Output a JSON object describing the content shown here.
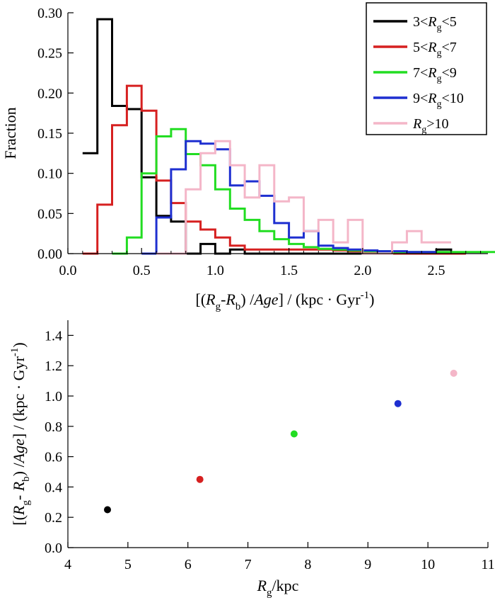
{
  "chart_data": [
    {
      "type": "histogram",
      "ylabel": "Fraction",
      "xlabel": {
        "parts": [
          {
            "t": "[(",
            "style": "normal"
          },
          {
            "t": "R",
            "style": "italic"
          },
          {
            "t": "g",
            "style": "sub"
          },
          {
            "t": "-",
            "style": "normal"
          },
          {
            "t": "R",
            "style": "italic"
          },
          {
            "t": "b",
            "style": "sub"
          },
          {
            "t": ") /",
            "style": "normal"
          },
          {
            "t": "Age",
            "style": "italic"
          },
          {
            "t": "] / (kpc · Gyr",
            "style": "normal"
          },
          {
            "t": "-1",
            "style": "sup"
          },
          {
            "t": ")",
            "style": "normal"
          }
        ]
      },
      "xlim": [
        0,
        2.85
      ],
      "ylim": [
        0,
        0.3
      ],
      "xticks": [
        {
          "v": 0.0,
          "label": "0.0"
        },
        {
          "v": 0.5,
          "label": "0.5"
        },
        {
          "v": 1.0,
          "label": "1.0"
        },
        {
          "v": 1.5,
          "label": "1.5"
        },
        {
          "v": 2.0,
          "label": "2.0"
        },
        {
          "v": 2.5,
          "label": "2.5"
        }
      ],
      "yticks": [
        {
          "v": 0.0,
          "label": "0.00"
        },
        {
          "v": 0.05,
          "label": "0.05"
        },
        {
          "v": 0.1,
          "label": "0.10"
        },
        {
          "v": 0.15,
          "label": "0.15"
        },
        {
          "v": 0.2,
          "label": "0.20"
        },
        {
          "v": 0.25,
          "label": "0.25"
        },
        {
          "v": 0.3,
          "label": "0.30"
        }
      ],
      "bin_width": 0.1,
      "legend_position": "top-right",
      "series": [
        {
          "label": [
            {
              "t": "3<",
              "style": "normal"
            },
            {
              "t": "R",
              "style": "italic"
            },
            {
              "t": "g",
              "style": "sub"
            },
            {
              "t": "<5",
              "style": "normal"
            }
          ],
          "color": "#000000",
          "bin_start": 0.1,
          "values": [
            0.125,
            0.292,
            0.184,
            0.18,
            0.095,
            0.047,
            0.04,
            0.0,
            0.012,
            0.0,
            0.005,
            0.0,
            0.0,
            0.0,
            0.0,
            0.0,
            0.0,
            0.0,
            0.0,
            0.0,
            0.0,
            0.0,
            0.0,
            0.0,
            0.005,
            0.0
          ]
        },
        {
          "label": [
            {
              "t": "5<",
              "style": "normal"
            },
            {
              "t": "R",
              "style": "italic"
            },
            {
              "t": "g",
              "style": "sub"
            },
            {
              "t": "<7",
              "style": "normal"
            }
          ],
          "color": "#d62020",
          "bin_start": 0.1,
          "values": [
            0.0,
            0.061,
            0.16,
            0.209,
            0.178,
            0.091,
            0.063,
            0.04,
            0.03,
            0.02,
            0.01,
            0.005,
            0.005,
            0.005,
            0.005,
            0.005,
            0.005,
            0.004,
            0.003,
            0.002,
            0.0,
            0.0,
            0.0,
            0.0,
            0.0,
            0.0
          ]
        },
        {
          "label": [
            {
              "t": "7<",
              "style": "normal"
            },
            {
              "t": "R",
              "style": "italic"
            },
            {
              "t": "g",
              "style": "sub"
            },
            {
              "t": "<9",
              "style": "normal"
            }
          ],
          "color": "#22dd22",
          "bin_start": 0.3,
          "values": [
            0.0,
            0.02,
            0.1,
            0.146,
            0.155,
            0.124,
            0.11,
            0.08,
            0.056,
            0.042,
            0.028,
            0.018,
            0.012,
            0.008,
            0.006,
            0.005,
            0.004,
            0.003,
            0.003,
            0.002,
            0.002,
            0.002,
            0.002,
            0.002,
            0.002,
            0.002
          ]
        },
        {
          "label": [
            {
              "t": "9<",
              "style": "normal"
            },
            {
              "t": "R",
              "style": "italic"
            },
            {
              "t": "g",
              "style": "sub"
            },
            {
              "t": "<10",
              "style": "normal"
            }
          ],
          "color": "#1e2fd0",
          "bin_start": 0.5,
          "values": [
            0.0,
            0.045,
            0.105,
            0.14,
            0.137,
            0.13,
            0.085,
            0.09,
            0.072,
            0.038,
            0.02,
            0.028,
            0.01,
            0.007,
            0.005,
            0.004,
            0.003,
            0.003,
            0.002,
            0.002
          ]
        },
        {
          "label": [
            {
              "t": "R",
              "style": "italic"
            },
            {
              "t": "g",
              "style": "sub"
            },
            {
              "t": ">10",
              "style": "normal"
            }
          ],
          "color": "#f4b6c8",
          "bin_start": 0.6,
          "values": [
            0.0,
            0.0,
            0.08,
            0.125,
            0.14,
            0.11,
            0.07,
            0.11,
            0.065,
            0.07,
            0.028,
            0.042,
            0.014,
            0.042,
            0.0,
            0.0,
            0.014,
            0.028,
            0.014,
            0.014
          ]
        }
      ]
    },
    {
      "type": "scatter",
      "xlabel": {
        "parts": [
          {
            "t": "R",
            "style": "italic"
          },
          {
            "t": "g",
            "style": "sub"
          },
          {
            "t": "/kpc",
            "style": "normal"
          }
        ]
      },
      "ylabel": {
        "parts": [
          {
            "t": "[(",
            "style": "normal"
          },
          {
            "t": "R",
            "style": "italic"
          },
          {
            "t": "g",
            "style": "sub"
          },
          {
            "t": "- ",
            "style": "normal"
          },
          {
            "t": "R",
            "style": "italic"
          },
          {
            "t": "b",
            "style": "sub"
          },
          {
            "t": ") /",
            "style": "normal"
          },
          {
            "t": "Age",
            "style": "italic"
          },
          {
            "t": "] / (kpc · Gyr",
            "style": "normal"
          },
          {
            "t": "-1",
            "style": "sup"
          },
          {
            "t": ")",
            "style": "normal"
          }
        ]
      },
      "xlim": [
        4,
        11
      ],
      "ylim": [
        0,
        1.5
      ],
      "xticks": [
        {
          "v": 4,
          "label": "4"
        },
        {
          "v": 5,
          "label": "5"
        },
        {
          "v": 6,
          "label": "6"
        },
        {
          "v": 7,
          "label": "7"
        },
        {
          "v": 8,
          "label": "8"
        },
        {
          "v": 9,
          "label": "9"
        },
        {
          "v": 10,
          "label": "10"
        },
        {
          "v": 11,
          "label": "11"
        }
      ],
      "yticks": [
        {
          "v": 0.0,
          "label": "0.0"
        },
        {
          "v": 0.2,
          "label": "0.2"
        },
        {
          "v": 0.4,
          "label": "0.4"
        },
        {
          "v": 0.6,
          "label": "0.6"
        },
        {
          "v": 0.8,
          "label": "0.8"
        },
        {
          "v": 1.0,
          "label": "1.0"
        },
        {
          "v": 1.2,
          "label": "1.2"
        },
        {
          "v": 1.4,
          "label": "1.4"
        }
      ],
      "points": [
        {
          "x": 4.66,
          "y": 0.25,
          "color": "#000000"
        },
        {
          "x": 6.2,
          "y": 0.45,
          "color": "#d62020"
        },
        {
          "x": 7.77,
          "y": 0.75,
          "color": "#22dd22"
        },
        {
          "x": 9.5,
          "y": 0.95,
          "color": "#1e2fd0"
        },
        {
          "x": 10.43,
          "y": 1.15,
          "color": "#f4b6c8"
        }
      ]
    }
  ]
}
